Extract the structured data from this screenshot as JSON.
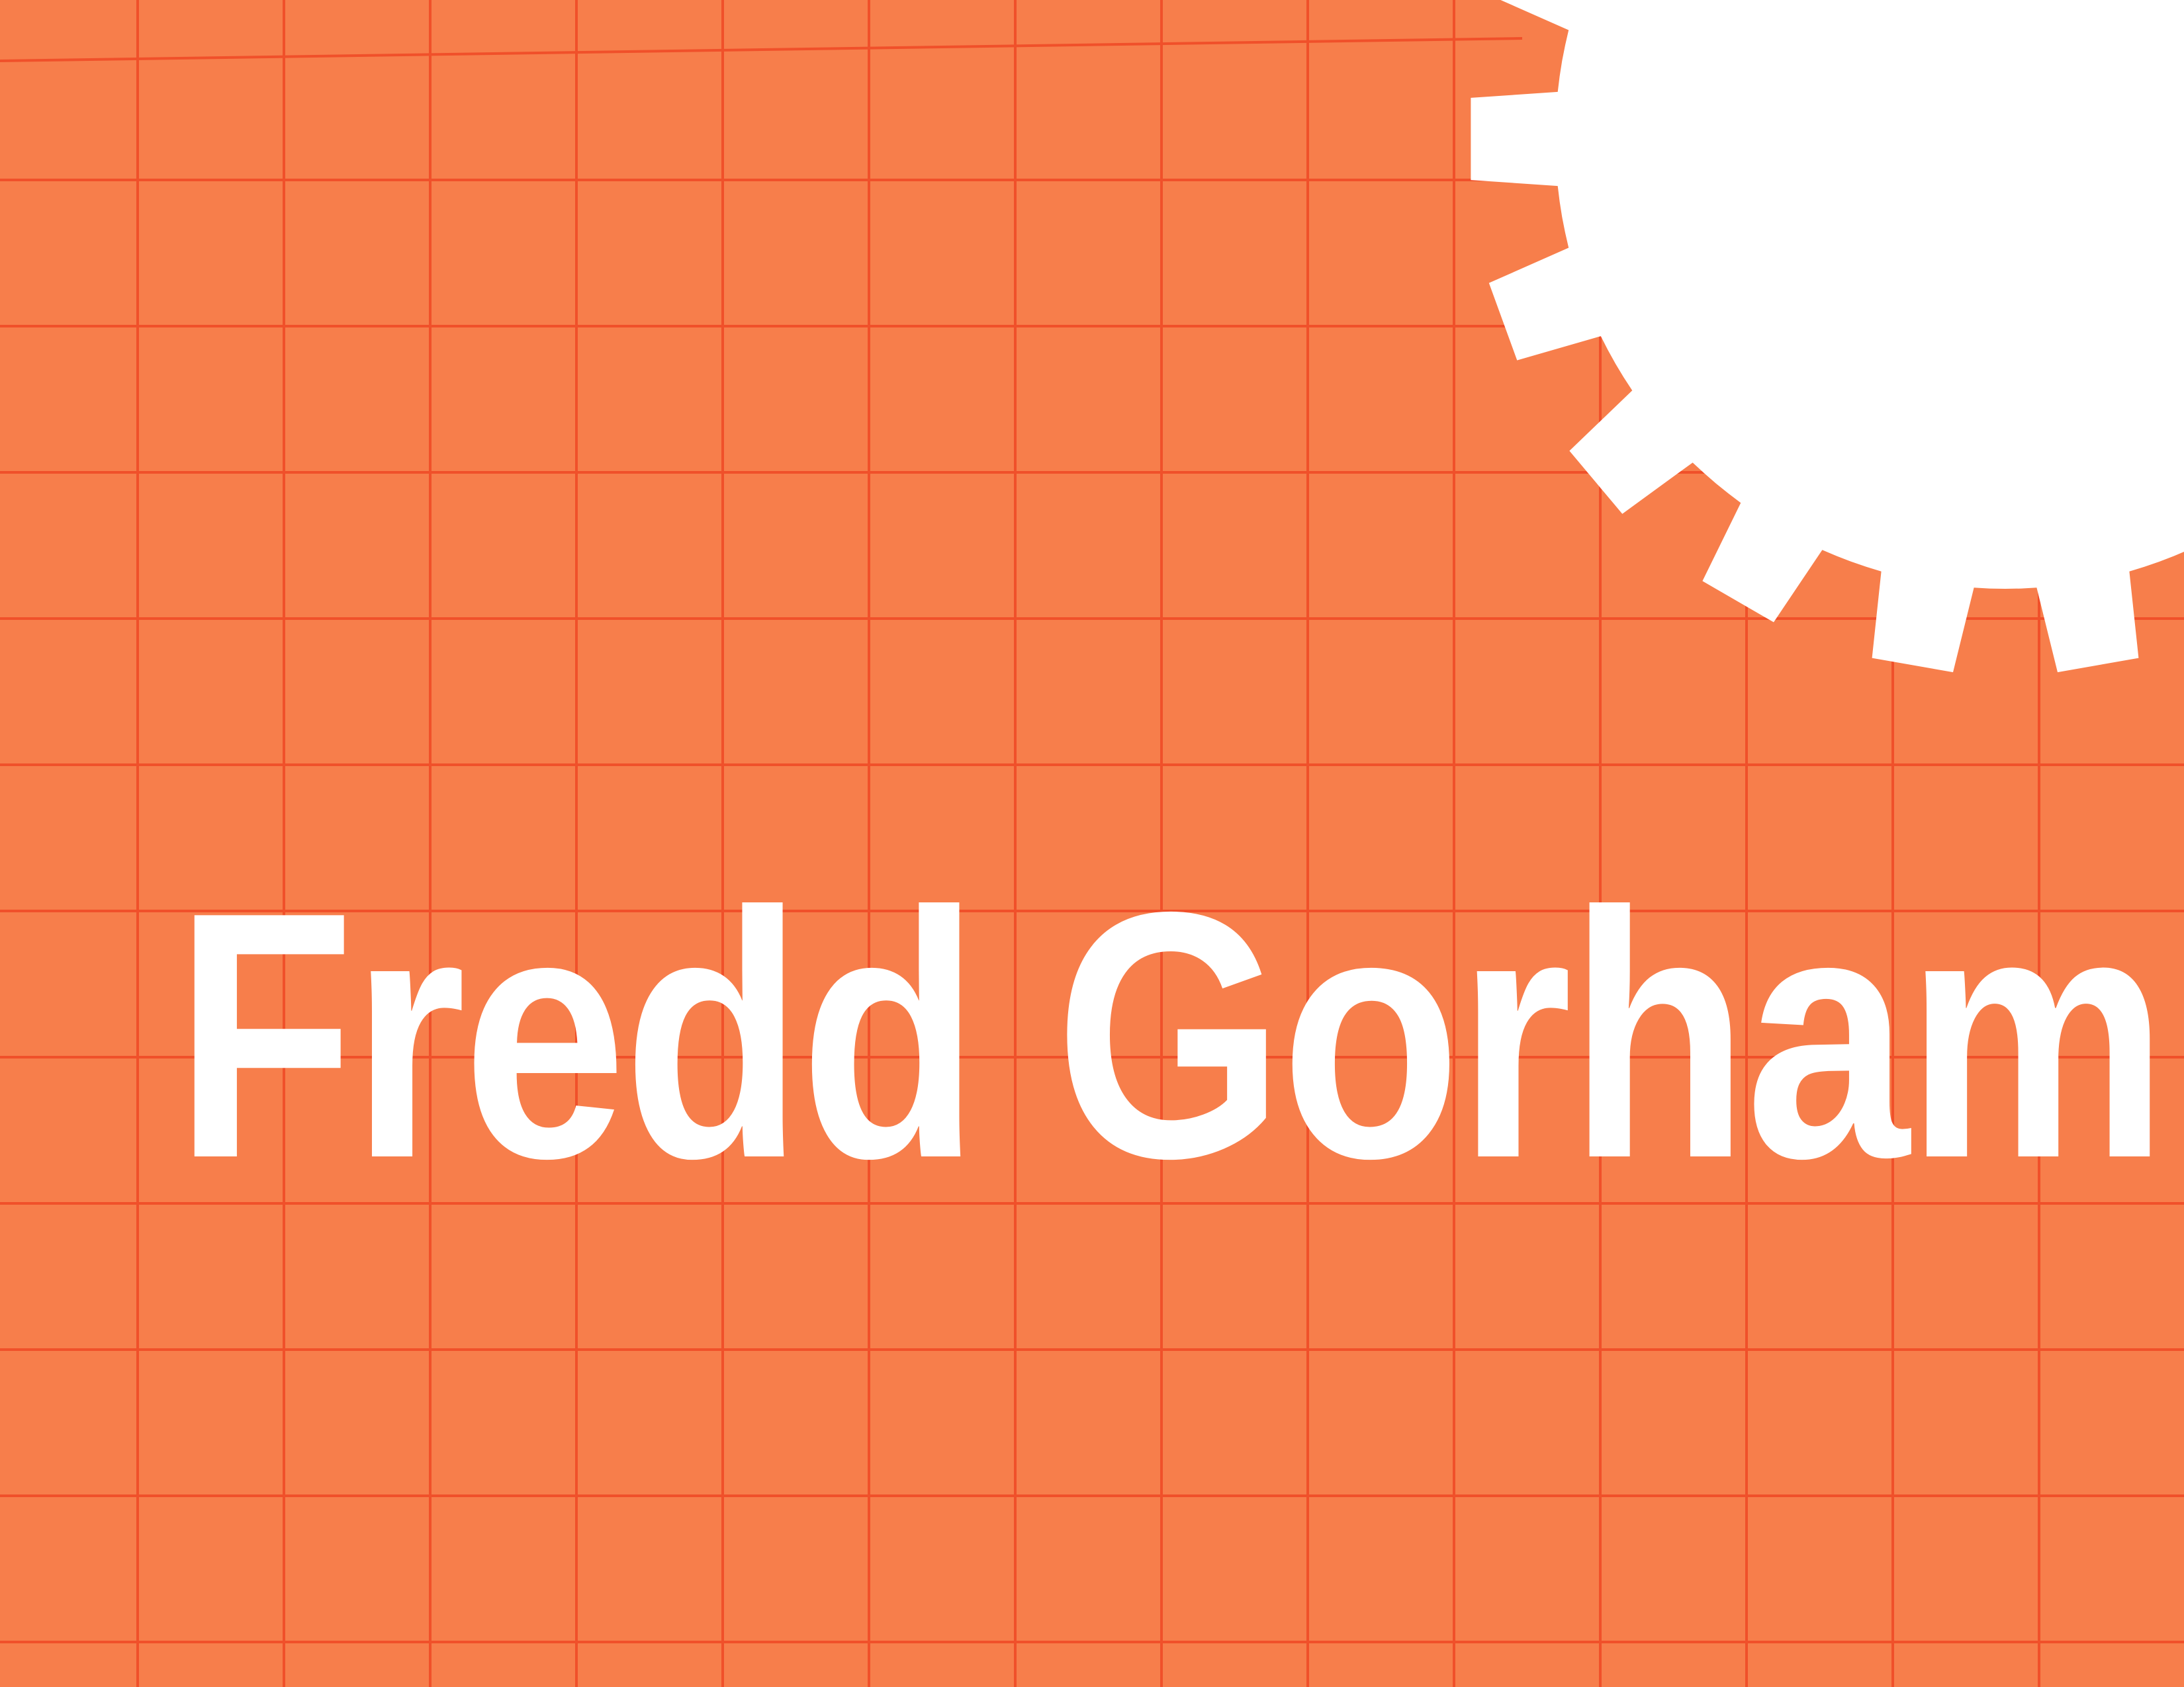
{
  "colors": {
    "background": "#f77e4b",
    "grid_line": "#f0502a",
    "gear": "#ffffff",
    "title_text": "#ffffff"
  },
  "decorations": {
    "grid": "grid-lines",
    "gear": "gear-icon"
  },
  "title": "Fredd Gorham"
}
